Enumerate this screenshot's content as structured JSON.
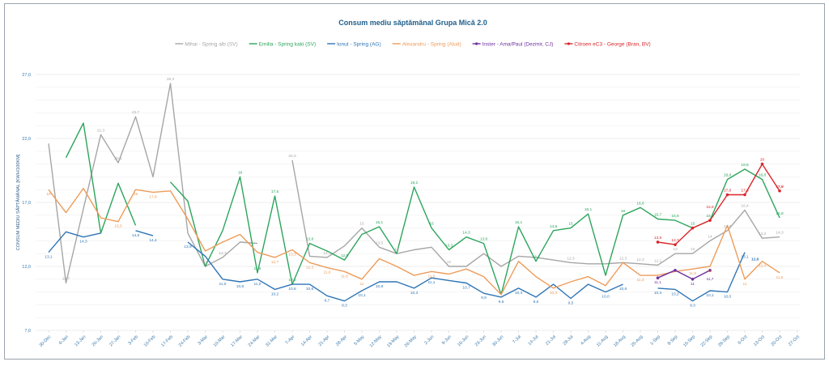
{
  "chart_data": {
    "type": "line",
    "title": "Consum mediu săptămânal Grupa Mică 2.0",
    "xlabel": "",
    "ylabel": "CONSUM MEDIU SĂPTĂMÂNAL [KWH/100KM]",
    "ylim": [
      7,
      27
    ],
    "yticks": [
      "7,0",
      "12,0",
      "17,0",
      "22,0",
      "27,0"
    ],
    "ytick_values": [
      7,
      12,
      17,
      22,
      27
    ],
    "grid": true,
    "legend_position": "top",
    "categories": [
      "30-Dec",
      "6-Jan",
      "13-Jan",
      "20-Jan",
      "27-Jan",
      "3-Feb",
      "10-Feb",
      "17-Feb",
      "24-Feb",
      "3-Mar",
      "10-Mar",
      "17-Mar",
      "24-Mar",
      "31-Mar",
      "7-Apr",
      "14-Apr",
      "21-Apr",
      "28-Apr",
      "5-May",
      "12-May",
      "19-May",
      "26-May",
      "2-Jun",
      "9-Jun",
      "16-Jun",
      "23-Jun",
      "30-Jun",
      "7-Jul",
      "14-Jul",
      "21-Jul",
      "28-Jul",
      "4-Aug",
      "11-Aug",
      "18-Aug",
      "25-Aug",
      "1-Sep",
      "8-Sep",
      "15-Sep",
      "22-Sep",
      "29-Sep",
      "6-Oct",
      "13-Oct",
      "20-Oct",
      "27-Oct"
    ],
    "series": [
      {
        "name": "Mihai - Spring alb (SV)",
        "color": "#a6a6a6",
        "markers": false,
        "values": [
          21.6,
          10.7,
          16.5,
          22.3,
          20.1,
          23.7,
          19.0,
          26.3,
          14.6,
          12.0,
          12.7,
          13.9,
          13.8,
          null,
          20.3,
          12.8,
          12.7,
          13.6,
          15.0,
          13.5,
          13.0,
          13.3,
          13.5,
          12.0,
          12.0,
          13.0,
          12.0,
          12.8,
          12.7,
          12.5,
          12.3,
          12.2,
          12.2,
          12.3,
          12.2,
          12.1,
          13.0,
          13.0,
          14.0,
          14.8,
          16.4,
          14.2,
          14.3,
          null
        ],
        "labels": {
          "1": "10,7",
          "3": "22,3",
          "4": "20,1",
          "5": "23,7",
          "7": "26,3",
          "9": "12",
          "10": "12,7",
          "14": "20,3",
          "16": "12,7",
          "18": "15",
          "19": "13,5",
          "20": "13",
          "23": "12",
          "30": "12,3",
          "33": "12,3",
          "34": "12,2",
          "35": "12,1",
          "36": "13",
          "37": "13",
          "38": "14",
          "39": "14,8",
          "40": "16,4",
          "41": "14,2",
          "42": "14,3"
        }
      },
      {
        "name": "Emilia - Spring kaki (SV)",
        "color": "#2ca55c",
        "markers": false,
        "values": [
          null,
          20.5,
          23.2,
          14.6,
          18.5,
          15.2,
          null,
          18.6,
          17.1,
          12.0,
          14.8,
          19.0,
          11.5,
          17.5,
          10.6,
          13.8,
          13.2,
          12.5,
          14.5,
          15.1,
          13.0,
          18.2,
          15.0,
          13.3,
          14.3,
          13.8,
          9.8,
          15.1,
          12.4,
          14.8,
          15.0,
          16.1,
          11.3,
          16.0,
          16.6,
          15.7,
          15.6,
          15.0,
          15.6,
          18.8,
          19.6,
          18.8,
          15.8,
          null
        ],
        "labels": {
          "11": "19",
          "12": "11,5",
          "13": "17,5",
          "14": "10,6",
          "15": "13,8",
          "17": "12,5",
          "19": "15,1",
          "21": "18,2",
          "22": "15",
          "23": "13,3",
          "24": "14,3",
          "25": "13,8",
          "27": "15,1",
          "28": "12,4",
          "29": "14,8",
          "30": "15",
          "31": "16,1",
          "33": "16",
          "34": "16,6",
          "35": "15,7",
          "36": "15,6",
          "37": "15",
          "38": "15,6",
          "39": "18,8",
          "40": "19,6",
          "41": "18,8",
          "42": "15,8"
        }
      },
      {
        "name": "Ionut - Spring (AG)",
        "color": "#2e75b6",
        "markers": false,
        "values": [
          13.1,
          14.7,
          14.3,
          14.6,
          null,
          14.8,
          14.4,
          null,
          13.9,
          12.8,
          11.0,
          10.8,
          11.0,
          10.2,
          10.6,
          10.6,
          9.7,
          9.3,
          10.1,
          10.8,
          10.8,
          10.3,
          11.1,
          10.9,
          10.7,
          9.9,
          9.6,
          10.3,
          9.6,
          10.6,
          9.5,
          10.6,
          10.0,
          10.6,
          null,
          10.3,
          10.2,
          9.3,
          10.1,
          10.0,
          13.1,
          null,
          null,
          null
        ],
        "labels": {
          "0": "13,1",
          "2": "14,3",
          "5": "14,8",
          "6": "14,4",
          "8": "13,9",
          "10": "11,0",
          "11": "10,8",
          "12": "11,0",
          "13": "10,2",
          "14": "10,6",
          "15": "10,6",
          "16": "9,7",
          "17": "9,3",
          "18": "10,1",
          "19": "10,8",
          "21": "10,3",
          "22": "11,1",
          "24": "10,7",
          "25": "9,9",
          "26": "9,6",
          "27": "10,3",
          "28": "9,6",
          "30": "9,5",
          "32": "10,0",
          "33": "10,6",
          "35": "10,3",
          "36": "10,2",
          "37": "9,3",
          "38": "10,1",
          "39": "10,0",
          "40": "13,1"
        }
      },
      {
        "name": "Alexandru - Spring (Alud)",
        "color": "#ed9c5a",
        "markers": false,
        "values": [
          18.0,
          16.2,
          18.1,
          15.8,
          15.5,
          18.0,
          17.8,
          17.9,
          15.7,
          13.2,
          13.9,
          14.5,
          13.1,
          12.7,
          13.3,
          12.3,
          11.9,
          11.6,
          11.0,
          12.6,
          12.0,
          11.3,
          11.6,
          11.4,
          11.8,
          11.2,
          9.8,
          12.4,
          11.2,
          10.3,
          10.8,
          11.2,
          10.5,
          12.3,
          11.3,
          11.3,
          11.6,
          11.8,
          12.0,
          15.2,
          11.0,
          12.4,
          11.5,
          null
        ],
        "labels": {
          "0": "18",
          "4": "15,5",
          "5": "18",
          "6": "17,8",
          "13": "12,7",
          "14": "13,3",
          "15": "12,3",
          "16": "11,9",
          "17": "11,6",
          "18": "11",
          "22": "11,6",
          "29": "10,3",
          "34": "11,3",
          "37": "11,8",
          "38": "12",
          "40": "11",
          "41": "12,4",
          "42": "11,5"
        }
      },
      {
        "name": "Inster - Ama/Paul (Dezmir, CJ)",
        "color": "#7030a0",
        "markers": true,
        "values": [
          null,
          null,
          null,
          null,
          null,
          null,
          null,
          null,
          null,
          null,
          null,
          null,
          null,
          null,
          null,
          null,
          null,
          null,
          null,
          null,
          null,
          null,
          null,
          null,
          null,
          null,
          null,
          null,
          null,
          null,
          null,
          null,
          null,
          null,
          null,
          11.1,
          11.7,
          11.0,
          11.7,
          null,
          null,
          null,
          null,
          null
        ],
        "labels": {
          "35": "11,1",
          "37": "11",
          "38": "11,7"
        }
      },
      {
        "name": "Citroen eC3 - George (Bran, BV)",
        "color": "#d9262b",
        "markers": true,
        "values": [
          null,
          null,
          null,
          null,
          null,
          null,
          null,
          null,
          null,
          null,
          null,
          null,
          null,
          null,
          null,
          null,
          null,
          null,
          null,
          null,
          null,
          null,
          null,
          null,
          null,
          null,
          null,
          null,
          null,
          null,
          null,
          null,
          null,
          null,
          null,
          13.9,
          13.7,
          15.0,
          15.6,
          17.6,
          17.6,
          20.0,
          17.9,
          null
        ],
        "labels": {
          "35": "13,9",
          "36": "13,7",
          "38": "15,6",
          "39": "17,6",
          "40": "17,6",
          "41": "20",
          "42": "17,9"
        }
      }
    ],
    "annotations": [
      {
        "text": "12,6",
        "category": "6-Oct",
        "value": 12.6,
        "color": "#2e75b6"
      }
    ]
  }
}
